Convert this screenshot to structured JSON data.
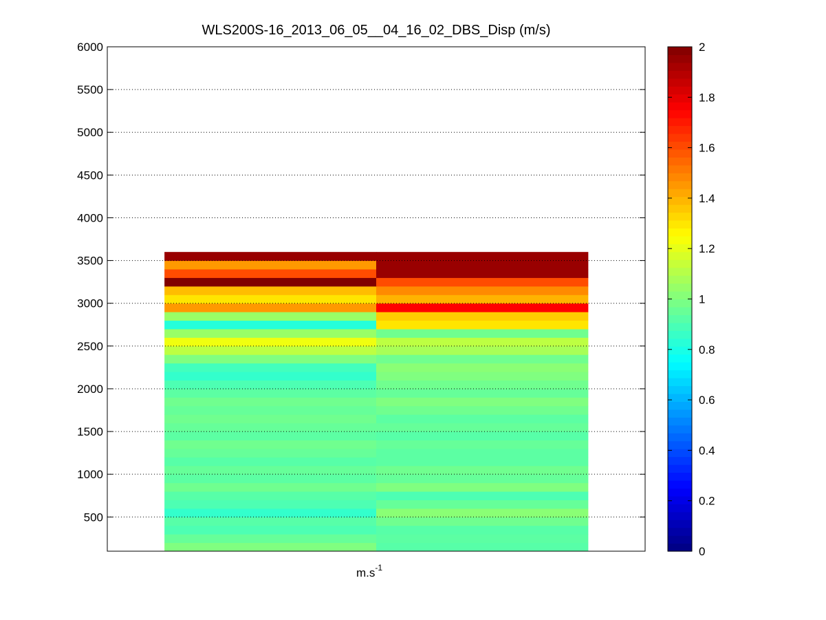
{
  "chart_data": {
    "type": "heatmap",
    "title": "WLS200S-16_2013_06_05__04_16_02_DBS_Disp (m/s)",
    "xlabel": {
      "base": "m.s",
      "sup": "-1"
    },
    "ylabel": "",
    "ylim": [
      100,
      6000
    ],
    "yticks": [
      500,
      1000,
      1500,
      2000,
      2500,
      3000,
      3500,
      4000,
      4500,
      5000,
      5500,
      6000
    ],
    "grid": "horizontal-dotted",
    "columns": 2,
    "row_height": 100,
    "colormap": "jet",
    "clim": [
      0,
      2
    ],
    "colorbar_ticks": [
      0,
      0.2,
      0.4,
      0.6,
      0.8,
      1,
      1.2,
      1.4,
      1.6,
      1.8,
      2
    ],
    "colorbar_placement": "right",
    "rows": [
      {
        "y": 150,
        "values": [
          1.0,
          0.92
        ]
      },
      {
        "y": 250,
        "values": [
          0.95,
          0.93
        ]
      },
      {
        "y": 350,
        "values": [
          0.9,
          0.92
        ]
      },
      {
        "y": 450,
        "values": [
          0.92,
          0.97
        ]
      },
      {
        "y": 550,
        "values": [
          0.85,
          1.02
        ]
      },
      {
        "y": 650,
        "values": [
          0.9,
          0.95
        ]
      },
      {
        "y": 750,
        "values": [
          0.92,
          0.9
        ]
      },
      {
        "y": 850,
        "values": [
          0.97,
          1.0
        ]
      },
      {
        "y": 950,
        "values": [
          0.93,
          0.95
        ]
      },
      {
        "y": 1050,
        "values": [
          0.95,
          0.97
        ]
      },
      {
        "y": 1150,
        "values": [
          0.92,
          0.93
        ]
      },
      {
        "y": 1250,
        "values": [
          0.95,
          0.93
        ]
      },
      {
        "y": 1350,
        "values": [
          0.97,
          0.95
        ]
      },
      {
        "y": 1450,
        "values": [
          0.93,
          0.92
        ]
      },
      {
        "y": 1550,
        "values": [
          0.95,
          0.95
        ]
      },
      {
        "y": 1650,
        "values": [
          0.97,
          0.93
        ]
      },
      {
        "y": 1750,
        "values": [
          0.95,
          0.97
        ]
      },
      {
        "y": 1850,
        "values": [
          0.97,
          1.0
        ]
      },
      {
        "y": 1950,
        "values": [
          0.93,
          0.95
        ]
      },
      {
        "y": 2050,
        "values": [
          0.9,
          0.97
        ]
      },
      {
        "y": 2150,
        "values": [
          0.85,
          1.0
        ]
      },
      {
        "y": 2250,
        "values": [
          0.88,
          1.02
        ]
      },
      {
        "y": 2350,
        "values": [
          1.0,
          0.97
        ]
      },
      {
        "y": 2450,
        "values": [
          1.12,
          1.08
        ]
      },
      {
        "y": 2550,
        "values": [
          1.22,
          1.12
        ]
      },
      {
        "y": 2650,
        "values": [
          1.05,
          0.97
        ]
      },
      {
        "y": 2750,
        "values": [
          0.82,
          1.3
        ]
      },
      {
        "y": 2850,
        "values": [
          1.05,
          1.35
        ]
      },
      {
        "y": 2950,
        "values": [
          1.45,
          1.75
        ]
      },
      {
        "y": 3050,
        "values": [
          1.3,
          1.4
        ]
      },
      {
        "y": 3150,
        "values": [
          1.38,
          1.48
        ]
      },
      {
        "y": 3250,
        "values": [
          2.0,
          1.6
        ]
      },
      {
        "y": 3350,
        "values": [
          1.6,
          1.95
        ]
      },
      {
        "y": 3450,
        "values": [
          1.45,
          1.95
        ]
      },
      {
        "y": 3550,
        "values": [
          1.95,
          1.95
        ]
      }
    ]
  }
}
